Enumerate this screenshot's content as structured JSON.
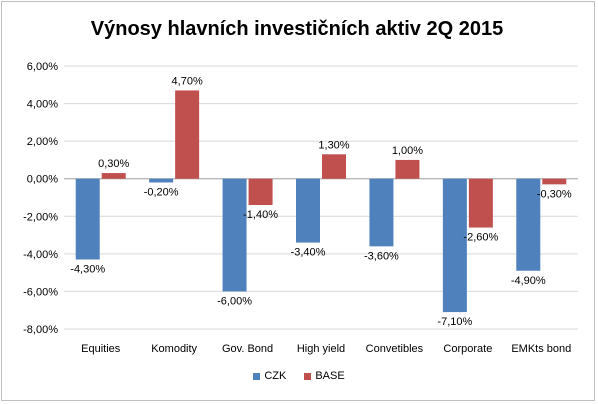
{
  "chart_data": {
    "type": "bar",
    "title": "Výnosy hlavních investičních aktiv 2Q 2015",
    "categories": [
      "Equities",
      "Komodity",
      "Gov. Bond",
      "High yield",
      "Convetibles",
      "Corporate",
      "EMKts bond"
    ],
    "series": [
      {
        "name": "CZK",
        "color": "#4f81bd",
        "values": [
          -4.3,
          -0.2,
          -6.0,
          -3.4,
          -3.6,
          -7.1,
          -4.9
        ],
        "labels": [
          "-4,30%",
          "-0,20%",
          "-6,00%",
          "-3,40%",
          "-3,60%",
          "-7,10%",
          "-4,90%"
        ]
      },
      {
        "name": "BASE",
        "color": "#c0504d",
        "values": [
          0.3,
          4.7,
          -1.4,
          1.3,
          1.0,
          -2.6,
          -0.3
        ],
        "labels": [
          "0,30%",
          "4,70%",
          "-1,40%",
          "1,30%",
          "1,00%",
          "-2,60%",
          "-0,30%"
        ]
      }
    ],
    "ylim": [
      -8,
      6
    ],
    "yticks": [
      6,
      4,
      2,
      0,
      -2,
      -4,
      -6,
      -8
    ],
    "ytick_labels": [
      "6,00%",
      "4,00%",
      "2,00%",
      "0,00%",
      "-2,00%",
      "-4,00%",
      "-6,00%",
      "-8,00%"
    ],
    "grid": true,
    "legend_position": "bottom"
  }
}
